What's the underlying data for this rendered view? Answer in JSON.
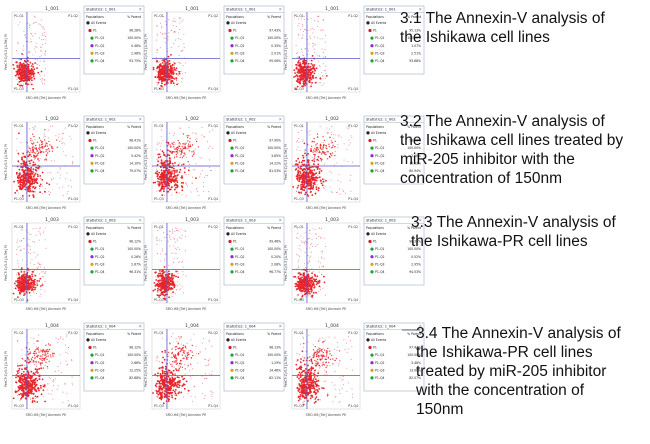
{
  "captions": [
    {
      "lines": [
        "3.1 The Annexin-V analysis of",
        "the Ishikawa cell lines"
      ]
    },
    {
      "lines": [
        "3.2 The Annexin-V analysis of",
        "the Ishikawa cell lines treated by",
        "miR-205 inhibitor with the",
        "concentration of 150nm"
      ]
    },
    {
      "lines": [
        "3.3 The Annexin-V analysis of",
        "the Ishikawa-PR cell lines"
      ]
    },
    {
      "lines": [
        "3.4 The Annexin-V analysis of",
        "the Ishikawa-PR cell lines",
        "treated by miR-205 inhibitor",
        "with the concentration of",
        "150nm"
      ]
    }
  ],
  "colors": {
    "dots": "#e8242a",
    "sparse_dots": "#e06b70",
    "gate_lines": "#5a55c8",
    "axis": "#555555",
    "panel_border": "#8aa0c0",
    "pop_colors": [
      "#222222",
      "#d21f26",
      "#1aa33a",
      "#8a2bd6",
      "#d4a21a"
    ]
  },
  "chart_data": [
    {
      "type": "scatter",
      "row": 0,
      "col": 0,
      "title": "1_001",
      "xlabel": "SRO-H8 [Tet] Annexin PE",
      "ylabel": "PerCP-Cy5-5 [A.Tet] PI",
      "quadrants": [
        "P1-Q1",
        "P1-Q2",
        "P1-Q3",
        "P1-Q4"
      ],
      "stats": {
        "title": "Statistics: 1_001",
        "headers": [
          "Populations",
          "% Parent"
        ],
        "populations": [
          "All Events",
          "P1",
          "P1-Q1",
          "P1-Q2",
          "P1-Q3",
          "P1-Q4"
        ],
        "values": [
          "",
          "96.28%",
          "100.00%",
          "0.48%",
          "2.98%",
          "93.75%"
        ]
      }
    },
    {
      "type": "scatter",
      "row": 0,
      "col": 1,
      "title": "1_001",
      "xlabel": "SRO-H8 [Tet] Annexin PE",
      "ylabel": "PerCP-Cy5-5 [A.Tet] PI",
      "quadrants": [
        "P1-Q1",
        "P1-Q2",
        "P1-Q3",
        "P1-Q4"
      ],
      "stats": {
        "title": "Statistics: 1_001",
        "headers": [
          "Populations",
          "% Parent"
        ],
        "populations": [
          "All Events",
          "P1",
          "P1-Q1",
          "P1-Q2",
          "P1-Q3",
          "P1-Q4"
        ],
        "values": [
          "",
          "97.43%",
          "100.00%",
          "0.35%",
          "2.01%",
          "95.06%"
        ]
      }
    },
    {
      "type": "scatter",
      "row": 0,
      "col": 2,
      "title": "1_001",
      "xlabel": "SRO-H8 [Tet] Annexin PE",
      "ylabel": "PerCP-Cy5-5 [A.Tet] PI",
      "quadrants": [
        "P1-Q1",
        "P1-Q2",
        "P1-Q3",
        "P1-Q4"
      ],
      "stats": {
        "title": "Statistics: 1_001",
        "headers": [
          "Populations",
          "% Parent"
        ],
        "populations": [
          "All Events",
          "P1",
          "P1-Q1",
          "P1-Q2",
          "P1-Q3",
          "P1-Q4"
        ],
        "values": [
          "",
          "95.13%",
          "100.00%",
          "1.07%",
          "2.51%",
          "93.68%"
        ]
      }
    },
    {
      "type": "scatter",
      "row": 1,
      "col": 0,
      "title": "1_002",
      "xlabel": "SRO-H8 [Tet] Annexin PE",
      "ylabel": "PerCP-Cy5-5 [A.Tet] PI",
      "quadrants": [
        "P1-Q1",
        "P1-Q2",
        "P1-Q3",
        "P1-Q4"
      ],
      "stats": {
        "title": "Statistics: 1_002",
        "headers": [
          "Populations",
          "% Parent"
        ],
        "populations": [
          "All Events",
          "P1",
          "P1-Q1",
          "P1-Q2",
          "P1-Q3",
          "P1-Q4"
        ],
        "values": [
          "",
          "98.41%",
          "100.00%",
          "5.42%",
          "14.10%",
          "79.07%"
        ]
      }
    },
    {
      "type": "scatter",
      "row": 1,
      "col": 1,
      "title": "1_002",
      "xlabel": "SRO-H8 [Tet] Annexin PE",
      "ylabel": "PerCP-Cy5-5 [A.Tet] PI",
      "quadrants": [
        "P1-Q1",
        "P1-Q2",
        "P1-Q3",
        "P1-Q4"
      ],
      "stats": {
        "title": "Statistics: 1_002",
        "headers": [
          "Populations",
          "% Parent"
        ],
        "populations": [
          "All Events",
          "P1",
          "P1-Q1",
          "P1-Q2",
          "P1-Q3",
          "P1-Q4"
        ],
        "values": [
          "",
          "97.90%",
          "100.00%",
          "3.85%",
          "14.22%",
          "81.03%"
        ]
      }
    },
    {
      "type": "scatter",
      "row": 1,
      "col": 2,
      "title": "1_002",
      "xlabel": "SRO-H8 [Tet] Annexin PE",
      "ylabel": "PerCP-Cy5-5 [A.Tet] PI",
      "quadrants": [
        "P1-Q1",
        "P1-Q2",
        "P1-Q3",
        "P1-Q4"
      ],
      "stats": {
        "title": "Statistics: 1_002",
        "headers": [
          "Populations",
          "% Parent"
        ],
        "populations": [
          "All Events",
          "P1",
          "P1-Q1",
          "P1-Q2",
          "P1-Q3",
          "P1-Q4"
        ],
        "values": [
          "",
          "98.46%",
          "100.00%",
          "2.08%",
          "16.02%",
          "80.94%"
        ]
      }
    },
    {
      "type": "scatter",
      "row": 2,
      "col": 0,
      "title": "1_003",
      "xlabel": "SRO-H8 [Tet] Annexin PE",
      "ylabel": "PerCP-Cy5-5 [A.Tet] PI",
      "quadrants": [
        "P1-Q1",
        "P1-Q2",
        "P1-Q3",
        "P1-Q4"
      ],
      "stats": {
        "title": "Statistics: 1_003",
        "headers": [
          "Populations",
          "% Parent"
        ],
        "populations": [
          "All Events",
          "P1",
          "P1-Q1",
          "P1-Q2",
          "P1-Q3",
          "P1-Q4"
        ],
        "values": [
          "",
          "96.12%",
          "100.00%",
          "0.26%",
          "2.67%",
          "96.31%"
        ]
      }
    },
    {
      "type": "scatter",
      "row": 2,
      "col": 1,
      "title": "1_003",
      "xlabel": "SRO-H8 [Tet] Annexin PE",
      "ylabel": "PerCP-Cy5-5 [A.Tet] PI",
      "quadrants": [
        "P1-Q1",
        "P1-Q2",
        "P1-Q3",
        "P1-Q4"
      ],
      "stats": {
        "title": "Statistics: 1_003",
        "headers": [
          "Populations",
          "% Parent"
        ],
        "populations": [
          "All Events",
          "P1",
          "P1-Q1",
          "P1-Q2",
          "P1-Q3",
          "P1-Q4"
        ],
        "values": [
          "",
          "99.46%",
          "100.00%",
          "0.20%",
          "2.08%",
          "96.77%"
        ]
      }
    },
    {
      "type": "scatter",
      "row": 2,
      "col": 2,
      "title": "1_003",
      "xlabel": "SRO-H8 [Tet] Annexin PE",
      "ylabel": "PerCP-Cy5-5 [A.Tet] PI",
      "quadrants": [
        "P1-Q1",
        "P1-Q2",
        "P1-Q3",
        "P1-Q4"
      ],
      "stats": {
        "title": "Statistics: 1_003",
        "headers": [
          "Populations",
          "% Parent"
        ],
        "populations": [
          "All Events",
          "P1",
          "P1-Q1",
          "P1-Q2",
          "P1-Q3",
          "P1-Q4"
        ],
        "values": [
          "",
          "98.35%",
          "100.00%",
          "0.52%",
          "2.95%",
          "94.53%"
        ]
      }
    },
    {
      "type": "scatter",
      "row": 3,
      "col": 0,
      "title": "1_004",
      "xlabel": "SRO-H8 [Tet] Annexin PE",
      "ylabel": "PerCP-Cy5-5 [A.Tet] PI",
      "quadrants": [
        "P1-Q1",
        "P1-Q2",
        "P1-Q3",
        "P1-Q4"
      ],
      "stats": {
        "title": "Statistics: 1_004",
        "headers": [
          "Populations",
          "% Parent"
        ],
        "populations": [
          "All Events",
          "P1",
          "P1-Q1",
          "P1-Q2",
          "P1-Q3",
          "P1-Q4"
        ],
        "values": [
          "",
          "98.12%",
          "100.00%",
          "2.66%",
          "12.25%",
          "82.88%"
        ]
      }
    },
    {
      "type": "scatter",
      "row": 3,
      "col": 1,
      "title": "1_004",
      "xlabel": "SRO-H8 [Tet] Annexin PE",
      "ylabel": "PerCP-Cy5-5 [A.Tet] PI",
      "quadrants": [
        "P1-Q1",
        "P1-Q2",
        "P1-Q3",
        "P1-Q4"
      ],
      "stats": {
        "title": "Statistics: 1_004",
        "headers": [
          "Populations",
          "% Parent"
        ],
        "populations": [
          "All Events",
          "P1",
          "P1-Q1",
          "P1-Q2",
          "P1-Q3",
          "P1-Q4"
        ],
        "values": [
          "",
          "98.13%",
          "100.00%",
          "1.29%",
          "14.46%",
          "82.11%"
        ]
      }
    },
    {
      "type": "scatter",
      "row": 3,
      "col": 2,
      "title": "1_004",
      "xlabel": "SRO-H8 [Tet] Annexin PE",
      "ylabel": "PerCP-Cy5-5 [A.Tet] PI",
      "quadrants": [
        "P1-Q1",
        "P1-Q2",
        "P1-Q3",
        "P1-Q4"
      ],
      "stats": {
        "title": "Statistics: 1_004",
        "headers": [
          "Populations",
          "% Parent"
        ],
        "populations": [
          "All Events",
          "P1",
          "P1-Q1",
          "P1-Q2",
          "P1-Q3",
          "P1-Q4"
        ],
        "values": [
          "",
          "97.44%",
          "100.00%",
          "3.48%",
          "13.08%",
          "82.07%"
        ]
      }
    }
  ]
}
